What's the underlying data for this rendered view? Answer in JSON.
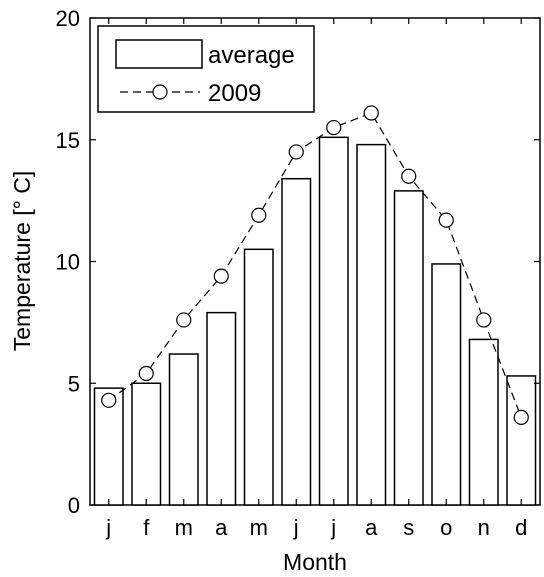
{
  "chart_data": {
    "type": "bar",
    "categories": [
      "j",
      "f",
      "m",
      "a",
      "m",
      "j",
      "j",
      "a",
      "s",
      "o",
      "n",
      "d"
    ],
    "series": [
      {
        "name": "average",
        "type": "bar",
        "values": [
          4.8,
          5.0,
          6.2,
          7.9,
          10.5,
          13.4,
          15.1,
          14.8,
          12.9,
          9.9,
          6.8,
          5.3
        ]
      },
      {
        "name": "2009",
        "type": "line",
        "marker": "circle",
        "line_style": "dashed",
        "values": [
          4.3,
          5.4,
          7.6,
          9.4,
          11.9,
          14.5,
          15.5,
          16.1,
          13.5,
          11.7,
          7.6,
          3.6
        ]
      }
    ],
    "xlabel": "Month",
    "ylabel": "Temperature [° C]",
    "ylim": [
      0,
      20
    ],
    "yticks": [
      0,
      5,
      10,
      15,
      20
    ],
    "grid": false,
    "legend_position": "top-left",
    "colors": {
      "bar_fill": "#ffffff",
      "stroke": "#000000",
      "background": "#ffffff"
    }
  }
}
